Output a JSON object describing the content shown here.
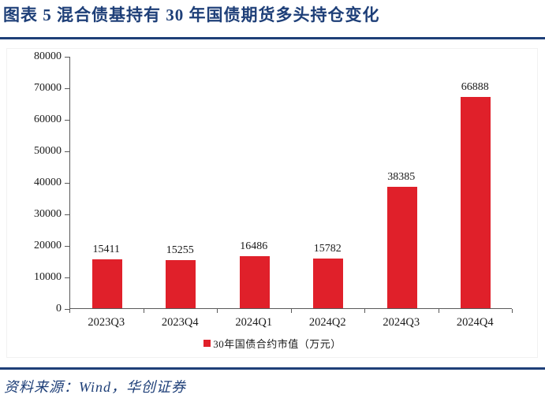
{
  "header": {
    "title": "图表 5   混合债基持有 30 年国债期货多头持仓变化"
  },
  "legend": {
    "label": "30年国债合约市值（万元）"
  },
  "footer": {
    "source": "资料来源：Wind，华创证券"
  },
  "colors": {
    "accent_navy": "#1e3f78",
    "bar_red": "#e0202a",
    "axis_gray": "#595959",
    "label_black": "#1a1a1a"
  },
  "chart_data": {
    "type": "bar",
    "title": "混合债基持有 30 年国债期货多头持仓变化",
    "categories": [
      "2023Q3",
      "2023Q4",
      "2024Q1",
      "2024Q2",
      "2024Q3",
      "2024Q4"
    ],
    "values": [
      15411,
      15255,
      16486,
      15782,
      38385,
      66888
    ],
    "series_name": "30年国债合约市值（万元）",
    "xlabel": "",
    "ylabel": "",
    "ylim": [
      0,
      80000
    ],
    "yticks": [
      0,
      10000,
      20000,
      30000,
      40000,
      50000,
      60000,
      70000,
      80000
    ],
    "grid": false,
    "data_labels": true,
    "legend_position": "bottom"
  }
}
